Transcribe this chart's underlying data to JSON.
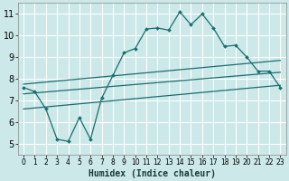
{
  "title": "",
  "xlabel": "Humidex (Indice chaleur)",
  "ylabel": "",
  "bg_color": "#cce8e8",
  "grid_color": "#ffffff",
  "line_color": "#1a6e6e",
  "xlim": [
    -0.5,
    23.5
  ],
  "ylim": [
    4.5,
    11.5
  ],
  "xticks": [
    0,
    1,
    2,
    3,
    4,
    5,
    6,
    7,
    8,
    9,
    10,
    11,
    12,
    13,
    14,
    15,
    16,
    17,
    18,
    19,
    20,
    21,
    22,
    23
  ],
  "yticks": [
    5,
    6,
    7,
    8,
    9,
    10,
    11
  ],
  "main_x": [
    0,
    1,
    2,
    3,
    4,
    5,
    6,
    7,
    8,
    9,
    10,
    11,
    12,
    13,
    14,
    15,
    16,
    17,
    18,
    19,
    20,
    21,
    22,
    23
  ],
  "main_y": [
    7.6,
    7.4,
    6.6,
    5.2,
    5.1,
    6.2,
    5.2,
    7.1,
    8.15,
    9.2,
    9.4,
    10.3,
    10.35,
    10.25,
    11.1,
    10.5,
    11.0,
    10.35,
    9.5,
    9.55,
    9.0,
    8.35,
    8.35,
    7.6
  ],
  "upper_line_x": [
    0,
    23
  ],
  "upper_line_y": [
    7.75,
    8.85
  ],
  "mid_line_x": [
    0,
    23
  ],
  "mid_line_y": [
    7.3,
    8.3
  ],
  "lower_line_x": [
    0,
    23
  ],
  "lower_line_y": [
    6.6,
    7.7
  ]
}
